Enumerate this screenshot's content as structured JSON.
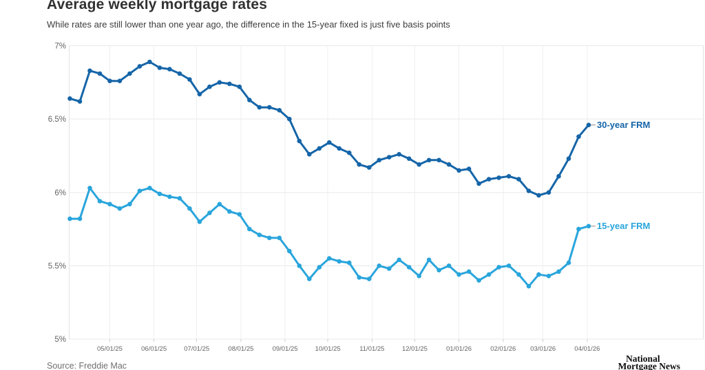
{
  "header": {
    "title": "Average weekly mortgage rates",
    "subtitle": "While rates are still lower than one year ago, the difference in the 15-year fixed is just five basis points"
  },
  "footer": {
    "source": "Source: Freddie Mac",
    "logo_line1": "National",
    "logo_line2": "Mortgage News"
  },
  "colors": {
    "series_30yr": "#1565a8",
    "series_15yr": "#29a5dc",
    "grid": "#e8e8e8",
    "month_grid": "#efefef",
    "plot_border": "#e2e2e2",
    "tick_mark": "#cccccc",
    "axis_text": "#646464",
    "leader_dash": "#9e9e9e"
  },
  "chart_data": {
    "type": "line",
    "title": "Average weekly mortgage rates",
    "subtitle": "While rates are still lower than one year ago, the difference in the 15-year fixed is just five basis points",
    "xlabel": "",
    "ylabel": "",
    "ylim": [
      5,
      7
    ],
    "grid": true,
    "legend_position": "end-of-line-right",
    "y_ticks": [
      {
        "label": "7%",
        "value": 7.0
      },
      {
        "label": "6.5%",
        "value": 6.5
      },
      {
        "label": "6%",
        "value": 6.0
      },
      {
        "label": "5.5%",
        "value": 5.5
      },
      {
        "label": "5%",
        "value": 5.0
      }
    ],
    "x_ticks": [
      {
        "label": "05/01/25",
        "day_offset": 28
      },
      {
        "label": "06/01/25",
        "day_offset": 59
      },
      {
        "label": "07/01/25",
        "day_offset": 89
      },
      {
        "label": "08/01/25",
        "day_offset": 120
      },
      {
        "label": "09/01/25",
        "day_offset": 151
      },
      {
        "label": "10/01/25",
        "day_offset": 181
      },
      {
        "label": "11/01/25",
        "day_offset": 212
      },
      {
        "label": "12/01/25",
        "day_offset": 242
      },
      {
        "label": "01/01/26",
        "day_offset": 273
      },
      {
        "label": "02/01/26",
        "day_offset": 304
      },
      {
        "label": "03/01/26",
        "day_offset": 332
      },
      {
        "label": "04/01/26",
        "day_offset": 363
      }
    ],
    "x": [
      "04/03/25",
      "04/10/25",
      "04/17/25",
      "04/24/25",
      "05/01/25",
      "05/08/25",
      "05/15/25",
      "05/22/25",
      "05/29/25",
      "06/05/25",
      "06/12/25",
      "06/19/25",
      "06/26/25",
      "07/03/25",
      "07/10/25",
      "07/17/25",
      "07/24/25",
      "07/31/25",
      "08/07/25",
      "08/14/25",
      "08/21/25",
      "08/28/25",
      "09/04/25",
      "09/11/25",
      "09/18/25",
      "09/25/25",
      "10/02/25",
      "10/09/25",
      "10/16/25",
      "10/23/25",
      "10/30/25",
      "11/06/25",
      "11/13/25",
      "11/20/25",
      "11/26/25",
      "12/04/25",
      "12/11/25",
      "12/18/25",
      "12/24/25",
      "12/31/25",
      "01/08/26",
      "01/15/26",
      "01/22/26",
      "01/29/26",
      "02/05/26",
      "02/12/26",
      "02/19/26",
      "02/26/26",
      "03/05/26",
      "03/12/26",
      "03/19/26",
      "03/26/26",
      "04/02/26"
    ],
    "series": [
      {
        "name": "30-year FRM",
        "color": "#1565a8",
        "values": [
          6.64,
          6.62,
          6.83,
          6.81,
          6.76,
          6.76,
          6.81,
          6.86,
          6.89,
          6.85,
          6.84,
          6.81,
          6.77,
          6.67,
          6.72,
          6.75,
          6.74,
          6.72,
          6.63,
          6.58,
          6.58,
          6.56,
          6.5,
          6.35,
          6.26,
          6.3,
          6.34,
          6.3,
          6.27,
          6.19,
          6.17,
          6.22,
          6.24,
          6.26,
          6.23,
          6.19,
          6.22,
          6.22,
          6.19,
          6.15,
          6.16,
          6.06,
          6.09,
          6.1,
          6.11,
          6.09,
          6.01,
          5.98,
          6.0,
          6.11,
          6.23,
          6.38,
          6.46
        ]
      },
      {
        "name": "15-year FRM",
        "color": "#29a5dc",
        "values": [
          5.82,
          5.82,
          6.03,
          5.94,
          5.92,
          5.89,
          5.92,
          6.01,
          6.03,
          5.99,
          5.97,
          5.96,
          5.89,
          5.8,
          5.86,
          5.92,
          5.87,
          5.85,
          5.75,
          5.71,
          5.69,
          5.69,
          5.6,
          5.5,
          5.41,
          5.49,
          5.55,
          5.53,
          5.52,
          5.42,
          5.41,
          5.5,
          5.48,
          5.54,
          5.49,
          5.43,
          5.54,
          5.47,
          5.5,
          5.44,
          5.46,
          5.4,
          5.44,
          5.49,
          5.5,
          5.44,
          5.36,
          5.44,
          5.43,
          5.46,
          5.52,
          5.75,
          5.77
        ]
      }
    ]
  }
}
